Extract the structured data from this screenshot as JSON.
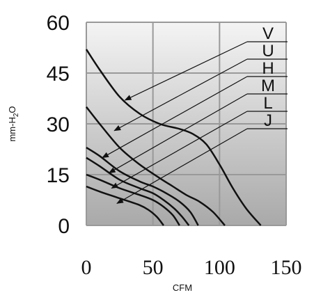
{
  "chart_data": {
    "type": "line",
    "xlabel": "CFM",
    "ylabel_main": "mm-H",
    "ylabel_sub": "2",
    "ylabel_tail": "O",
    "xlim": [
      0,
      150
    ],
    "ylim": [
      0,
      60
    ],
    "x_ticks": [
      "0",
      "50",
      "100",
      "150"
    ],
    "y_ticks": [
      "0",
      "15",
      "30",
      "45",
      "60"
    ],
    "grid": true,
    "series": [
      {
        "name": "V",
        "points": [
          [
            0,
            52
          ],
          [
            10,
            46
          ],
          [
            25,
            38
          ],
          [
            40,
            33
          ],
          [
            55,
            30
          ],
          [
            70,
            28.5
          ],
          [
            80,
            27
          ],
          [
            90,
            24
          ],
          [
            100,
            18
          ],
          [
            110,
            11
          ],
          [
            120,
            5
          ],
          [
            131,
            0
          ]
        ]
      },
      {
        "name": "U",
        "points": [
          [
            0,
            35
          ],
          [
            10,
            30
          ],
          [
            25,
            23
          ],
          [
            40,
            18
          ],
          [
            55,
            14
          ],
          [
            65,
            11.5
          ],
          [
            75,
            9
          ],
          [
            85,
            7
          ],
          [
            95,
            4
          ],
          [
            104,
            0
          ]
        ]
      },
      {
        "name": "H",
        "points": [
          [
            0,
            23
          ],
          [
            10,
            20.5
          ],
          [
            25,
            16
          ],
          [
            40,
            13
          ],
          [
            50,
            11.5
          ],
          [
            60,
            9.5
          ],
          [
            70,
            7
          ],
          [
            78,
            4
          ],
          [
            84,
            0
          ]
        ]
      },
      {
        "name": "M",
        "points": [
          [
            0,
            20
          ],
          [
            10,
            17.5
          ],
          [
            25,
            13.5
          ],
          [
            40,
            11
          ],
          [
            50,
            9.5
          ],
          [
            58,
            7.5
          ],
          [
            66,
            5
          ],
          [
            72,
            2.5
          ],
          [
            77,
            0
          ]
        ]
      },
      {
        "name": "L",
        "points": [
          [
            0,
            15
          ],
          [
            10,
            13.5
          ],
          [
            25,
            11
          ],
          [
            40,
            9
          ],
          [
            50,
            7.5
          ],
          [
            58,
            5.5
          ],
          [
            65,
            3
          ],
          [
            70,
            0
          ]
        ]
      },
      {
        "name": "J",
        "points": [
          [
            0,
            11.5
          ],
          [
            10,
            10
          ],
          [
            25,
            8
          ],
          [
            40,
            6
          ],
          [
            47,
            4.5
          ],
          [
            53,
            2.5
          ],
          [
            58,
            0
          ]
        ]
      }
    ],
    "arrow_targets": [
      {
        "series": "V",
        "point": [
          29,
          37
        ]
      },
      {
        "series": "U",
        "point": [
          21,
          28
        ]
      },
      {
        "series": "H",
        "point": [
          12,
          20
        ]
      },
      {
        "series": "M",
        "point": [
          17,
          15.5
        ]
      },
      {
        "series": "L",
        "point": [
          19,
          11
        ]
      },
      {
        "series": "J",
        "point": [
          23,
          6.5
        ]
      }
    ],
    "colors": {
      "line": "#111111",
      "grid": "#999999",
      "plot_top": "#f4f4f4",
      "plot_bottom": "#a9a9a9"
    }
  }
}
